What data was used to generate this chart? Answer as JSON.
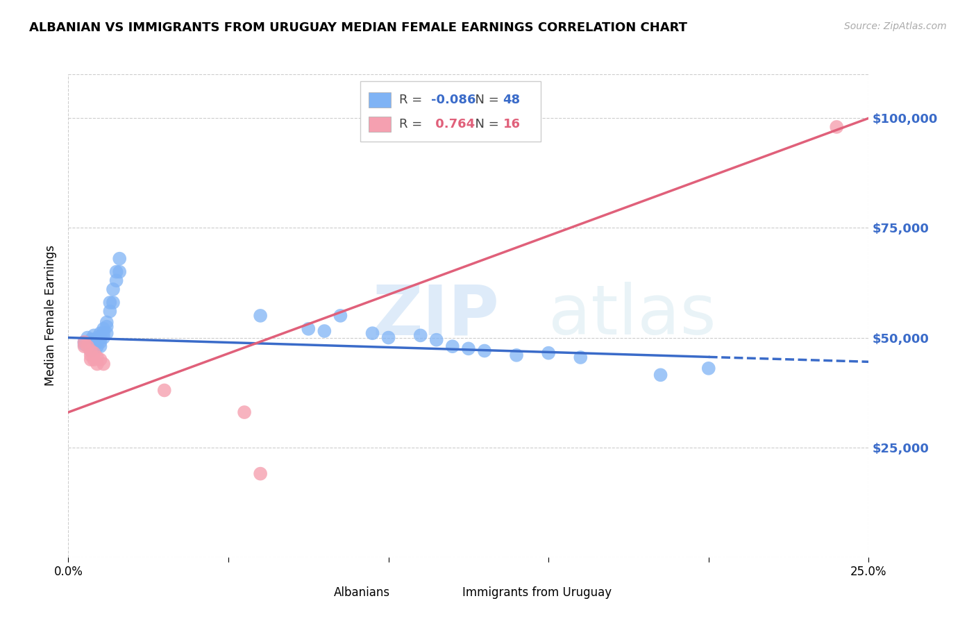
{
  "title": "ALBANIAN VS IMMIGRANTS FROM URUGUAY MEDIAN FEMALE EARNINGS CORRELATION CHART",
  "source": "Source: ZipAtlas.com",
  "ylabel": "Median Female Earnings",
  "watermark": "ZIPatlas",
  "blue_label": "Albanians",
  "pink_label": "Immigrants from Uruguay",
  "blue_R": -0.086,
  "blue_N": 48,
  "pink_R": 0.764,
  "pink_N": 16,
  "xlim": [
    0,
    0.25
  ],
  "ylim": [
    0,
    110000
  ],
  "yticks": [
    25000,
    50000,
    75000,
    100000
  ],
  "ytick_labels": [
    "$25,000",
    "$50,000",
    "$75,000",
    "$100,000"
  ],
  "xticks": [
    0.0,
    0.05,
    0.1,
    0.15,
    0.2,
    0.25
  ],
  "xtick_labels": [
    "0.0%",
    "",
    "",
    "",
    "",
    "25.0%"
  ],
  "grid_color": "#cccccc",
  "blue_color": "#7fb3f5",
  "pink_color": "#f5a0b0",
  "blue_line_color": "#3a6bc9",
  "pink_line_color": "#e0607a",
  "right_label_color": "#3a6bc9",
  "background_color": "#ffffff",
  "blue_dots": [
    [
      0.005,
      49000
    ],
    [
      0.005,
      48500
    ],
    [
      0.006,
      50000
    ],
    [
      0.006,
      49000
    ],
    [
      0.007,
      49500
    ],
    [
      0.007,
      48000
    ],
    [
      0.007,
      47000
    ],
    [
      0.008,
      50500
    ],
    [
      0.008,
      49500
    ],
    [
      0.008,
      48500
    ],
    [
      0.008,
      48000
    ],
    [
      0.009,
      50000
    ],
    [
      0.009,
      49000
    ],
    [
      0.009,
      48000
    ],
    [
      0.01,
      51000
    ],
    [
      0.01,
      50000
    ],
    [
      0.01,
      49000
    ],
    [
      0.01,
      48000
    ],
    [
      0.011,
      52000
    ],
    [
      0.011,
      51000
    ],
    [
      0.011,
      50000
    ],
    [
      0.012,
      53500
    ],
    [
      0.012,
      52500
    ],
    [
      0.012,
      51000
    ],
    [
      0.013,
      58000
    ],
    [
      0.013,
      56000
    ],
    [
      0.014,
      61000
    ],
    [
      0.014,
      58000
    ],
    [
      0.015,
      65000
    ],
    [
      0.015,
      63000
    ],
    [
      0.016,
      68000
    ],
    [
      0.016,
      65000
    ],
    [
      0.06,
      55000
    ],
    [
      0.075,
      52000
    ],
    [
      0.08,
      51500
    ],
    [
      0.085,
      55000
    ],
    [
      0.095,
      51000
    ],
    [
      0.1,
      50000
    ],
    [
      0.11,
      50500
    ],
    [
      0.115,
      49500
    ],
    [
      0.12,
      48000
    ],
    [
      0.125,
      47500
    ],
    [
      0.13,
      47000
    ],
    [
      0.14,
      46000
    ],
    [
      0.15,
      46500
    ],
    [
      0.16,
      45500
    ],
    [
      0.185,
      41500
    ],
    [
      0.2,
      43000
    ]
  ],
  "pink_dots": [
    [
      0.005,
      49000
    ],
    [
      0.005,
      48000
    ],
    [
      0.006,
      48000
    ],
    [
      0.007,
      47000
    ],
    [
      0.007,
      46000
    ],
    [
      0.007,
      45000
    ],
    [
      0.008,
      46500
    ],
    [
      0.008,
      45000
    ],
    [
      0.009,
      45500
    ],
    [
      0.009,
      44000
    ],
    [
      0.01,
      45000
    ],
    [
      0.011,
      44000
    ],
    [
      0.03,
      38000
    ],
    [
      0.055,
      33000
    ],
    [
      0.06,
      19000
    ],
    [
      0.24,
      98000
    ]
  ],
  "blue_line_x": [
    0.0,
    0.25
  ],
  "blue_line_y": [
    50000,
    44500
  ],
  "blue_line_solid_end": 0.2,
  "pink_line_x": [
    0.0,
    0.25
  ],
  "pink_line_y": [
    33000,
    100000
  ]
}
